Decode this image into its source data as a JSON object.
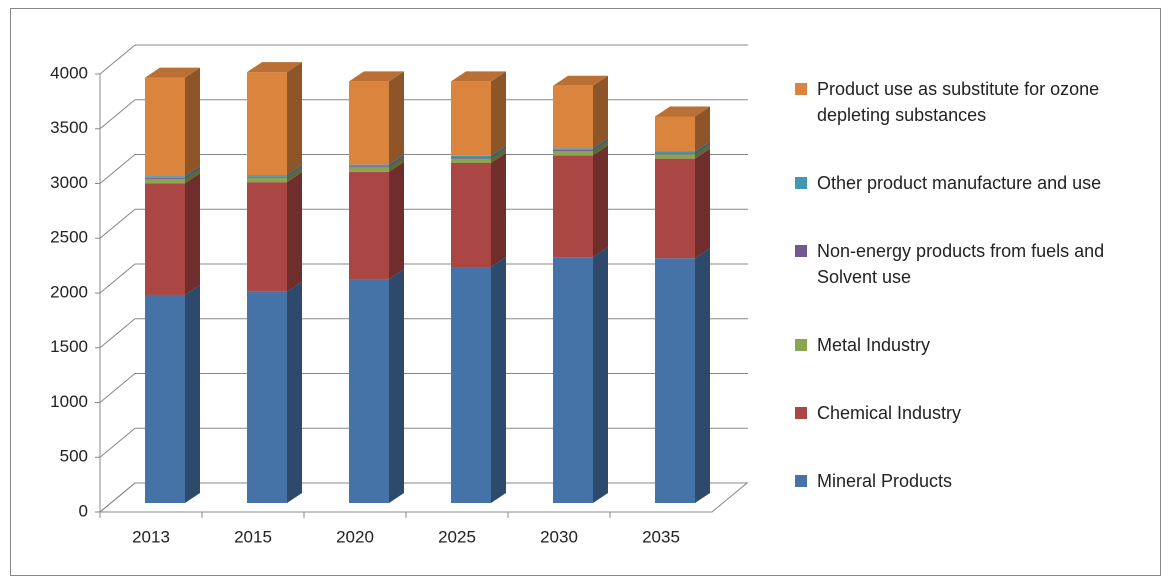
{
  "chart_data": {
    "type": "bar",
    "stacked": true,
    "three_d": true,
    "categories": [
      "2013",
      "2015",
      "2020",
      "2025",
      "2030",
      "2035"
    ],
    "series": [
      {
        "name": "Mineral Products",
        "color": "#4572a7",
        "values": [
          1900,
          1930,
          2045,
          2155,
          2245,
          2235
        ]
      },
      {
        "name": "Chemical Industry",
        "color": "#aa4643",
        "values": [
          1020,
          1000,
          980,
          950,
          930,
          910
        ]
      },
      {
        "name": "Metal Industry",
        "color": "#89a54e",
        "values": [
          40,
          40,
          40,
          40,
          40,
          40
        ]
      },
      {
        "name": "Non-energy products from fuels and Solvent use",
        "color": "#71588f",
        "values": [
          10,
          10,
          10,
          10,
          10,
          10
        ]
      },
      {
        "name": "Other product manufacture and use",
        "color": "#4198af",
        "values": [
          15,
          15,
          15,
          15,
          15,
          15
        ]
      },
      {
        "name": "Product use as substitute for ozone depleting substances",
        "color": "#db843d",
        "values": [
          900,
          940,
          760,
          680,
          570,
          320
        ]
      }
    ],
    "ylim": [
      0,
      4000
    ],
    "yticks": [
      0,
      500,
      1000,
      1500,
      2000,
      2500,
      3000,
      3500,
      4000
    ],
    "grid": true,
    "legend": "right"
  }
}
